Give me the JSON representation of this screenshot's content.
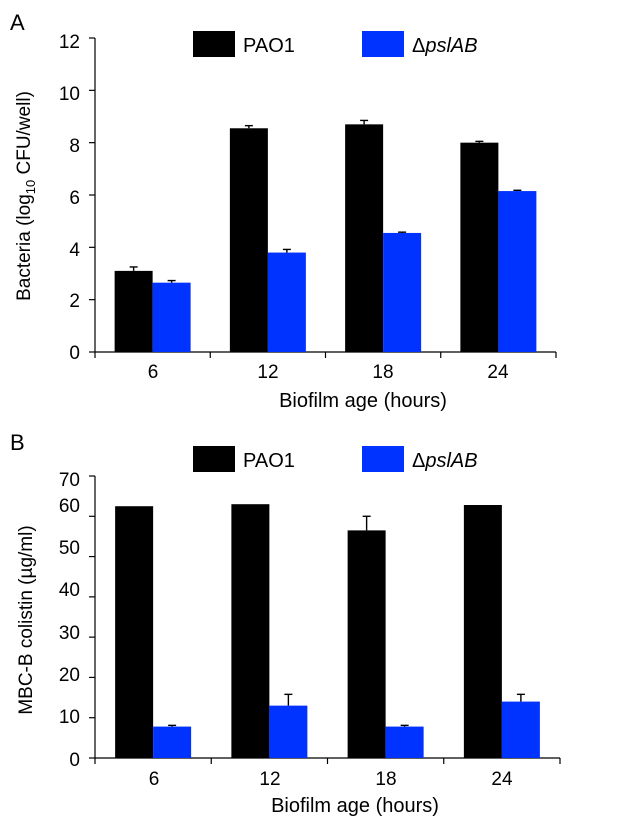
{
  "chart_data": [
    {
      "panel_label": "A",
      "type": "bar",
      "categories": [
        "6",
        "12",
        "18",
        "24"
      ],
      "series": [
        {
          "name": "PAO1",
          "color": "#000000",
          "values": [
            3.1,
            8.55,
            8.7,
            8.0
          ],
          "errors": [
            0.15,
            0.1,
            0.15,
            0.05
          ]
        },
        {
          "name": "ΔpslAB",
          "name_prefix": "Δ",
          "name_italic": "pslAB",
          "color": "#0033ff",
          "values": [
            2.65,
            3.8,
            4.55,
            6.15
          ],
          "errors": [
            0.08,
            0.12,
            0.03,
            0.03
          ]
        }
      ],
      "xlabel": "Biofilm age (hours)",
      "ylabel_parts": [
        "Bacteria (log",
        "10",
        " CFU/well)"
      ],
      "ylim": [
        0,
        12
      ],
      "yticks": [
        "0",
        "2",
        "4",
        "6",
        "8",
        "10",
        "12"
      ],
      "legend_position": "top"
    },
    {
      "panel_label": "B",
      "type": "bar",
      "categories": [
        "6",
        "12",
        "18",
        "24"
      ],
      "series": [
        {
          "name": "PAO1",
          "color": "#000000",
          "values": [
            62.5,
            63,
            56.5,
            62.8
          ],
          "errors": [
            0,
            0,
            3.5,
            0
          ]
        },
        {
          "name": "ΔpslAB",
          "name_prefix": "Δ",
          "name_italic": "pslAB",
          "color": "#0033ff",
          "values": [
            7.8,
            13,
            7.8,
            14
          ],
          "errors": [
            0.3,
            2.8,
            0.3,
            1.8
          ]
        }
      ],
      "xlabel": "Biofilm age (hours)",
      "ylabel_parts": [
        "MBC-B colistin (µg/ml)"
      ],
      "ylim": [
        0,
        70
      ],
      "yticks": [
        "0",
        "10",
        "20",
        "30",
        "40",
        "50",
        "60",
        "70"
      ],
      "legend_position": "top"
    }
  ]
}
